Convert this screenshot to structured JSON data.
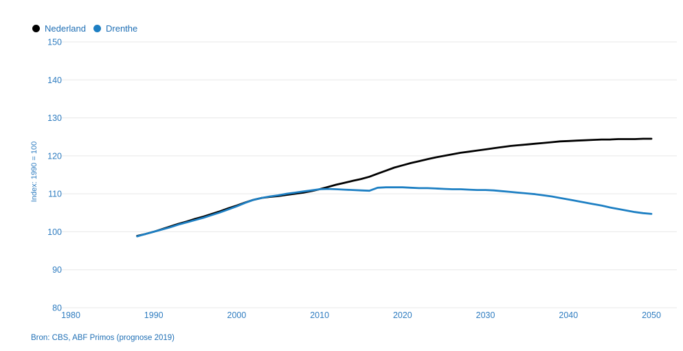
{
  "page": {
    "background": "#ffffff"
  },
  "legend": {
    "items": [
      {
        "label": "Nederland",
        "color": "#000000"
      },
      {
        "label": "Drenthe",
        "color": "#1d7fc3"
      }
    ]
  },
  "source_note": "Bron: CBS, ABF Primos (prognose 2019)",
  "colors": {
    "gridline": "#e7e7e7",
    "tick_text": "#2e7cc0",
    "label_text": "#1f6fb5",
    "nederland_line": "#000000",
    "drenthe_line": "#1d7fc3"
  },
  "chart_data": {
    "type": "line",
    "title": "",
    "xlabel": "",
    "ylabel": "Index: 1990 = 100",
    "xlim": [
      1980,
      2050
    ],
    "ylim": [
      80,
      150
    ],
    "xticks": [
      1980,
      1990,
      2000,
      2010,
      2020,
      2030,
      2040,
      2050
    ],
    "yticks": [
      80,
      90,
      100,
      110,
      120,
      130,
      140,
      150
    ],
    "grid": "horizontal",
    "legend_position": "top-left",
    "source": "Bron: CBS, ABF Primos (prognose 2019)",
    "series": [
      {
        "name": "Nederland",
        "color": "#000000",
        "points": [
          [
            1988,
            98.9
          ],
          [
            1989,
            99.4
          ],
          [
            1990,
            100.0
          ],
          [
            1991,
            100.7
          ],
          [
            1992,
            101.4
          ],
          [
            1993,
            102.1
          ],
          [
            1994,
            102.7
          ],
          [
            1995,
            103.4
          ],
          [
            1996,
            104.0
          ],
          [
            1997,
            104.7
          ],
          [
            1998,
            105.4
          ],
          [
            1999,
            106.2
          ],
          [
            2000,
            106.9
          ],
          [
            2001,
            107.7
          ],
          [
            2002,
            108.4
          ],
          [
            2003,
            108.9
          ],
          [
            2004,
            109.2
          ],
          [
            2005,
            109.4
          ],
          [
            2006,
            109.7
          ],
          [
            2007,
            110.0
          ],
          [
            2008,
            110.3
          ],
          [
            2009,
            110.7
          ],
          [
            2010,
            111.2
          ],
          [
            2011,
            111.8
          ],
          [
            2012,
            112.4
          ],
          [
            2013,
            112.9
          ],
          [
            2014,
            113.4
          ],
          [
            2015,
            113.9
          ],
          [
            2016,
            114.5
          ],
          [
            2017,
            115.3
          ],
          [
            2018,
            116.1
          ],
          [
            2019,
            116.9
          ],
          [
            2020,
            117.5
          ],
          [
            2021,
            118.1
          ],
          [
            2022,
            118.6
          ],
          [
            2023,
            119.1
          ],
          [
            2024,
            119.6
          ],
          [
            2025,
            120.0
          ],
          [
            2026,
            120.4
          ],
          [
            2027,
            120.8
          ],
          [
            2028,
            121.1
          ],
          [
            2029,
            121.4
          ],
          [
            2030,
            121.7
          ],
          [
            2031,
            122.0
          ],
          [
            2032,
            122.3
          ],
          [
            2033,
            122.6
          ],
          [
            2034,
            122.8
          ],
          [
            2035,
            123.0
          ],
          [
            2036,
            123.2
          ],
          [
            2037,
            123.4
          ],
          [
            2038,
            123.6
          ],
          [
            2039,
            123.8
          ],
          [
            2040,
            123.9
          ],
          [
            2041,
            124.0
          ],
          [
            2042,
            124.1
          ],
          [
            2043,
            124.2
          ],
          [
            2044,
            124.3
          ],
          [
            2045,
            124.3
          ],
          [
            2046,
            124.4
          ],
          [
            2047,
            124.4
          ],
          [
            2048,
            124.4
          ],
          [
            2049,
            124.5
          ],
          [
            2050,
            124.5
          ]
        ]
      },
      {
        "name": "Drenthe",
        "color": "#1d7fc3",
        "points": [
          [
            1988,
            98.8
          ],
          [
            1989,
            99.4
          ],
          [
            1990,
            100.0
          ],
          [
            1991,
            100.6
          ],
          [
            1992,
            101.2
          ],
          [
            1993,
            101.9
          ],
          [
            1994,
            102.5
          ],
          [
            1995,
            103.1
          ],
          [
            1996,
            103.7
          ],
          [
            1997,
            104.4
          ],
          [
            1998,
            105.1
          ],
          [
            1999,
            105.9
          ],
          [
            2000,
            106.7
          ],
          [
            2001,
            107.6
          ],
          [
            2002,
            108.4
          ],
          [
            2003,
            108.9
          ],
          [
            2004,
            109.3
          ],
          [
            2005,
            109.6
          ],
          [
            2006,
            110.0
          ],
          [
            2007,
            110.3
          ],
          [
            2008,
            110.6
          ],
          [
            2009,
            110.9
          ],
          [
            2010,
            111.2
          ],
          [
            2011,
            111.3
          ],
          [
            2012,
            111.2
          ],
          [
            2013,
            111.1
          ],
          [
            2014,
            111.0
          ],
          [
            2015,
            110.9
          ],
          [
            2016,
            110.8
          ],
          [
            2017,
            111.6
          ],
          [
            2018,
            111.7
          ],
          [
            2019,
            111.7
          ],
          [
            2020,
            111.7
          ],
          [
            2021,
            111.6
          ],
          [
            2022,
            111.5
          ],
          [
            2023,
            111.5
          ],
          [
            2024,
            111.4
          ],
          [
            2025,
            111.3
          ],
          [
            2026,
            111.2
          ],
          [
            2027,
            111.2
          ],
          [
            2028,
            111.1
          ],
          [
            2029,
            111.0
          ],
          [
            2030,
            111.0
          ],
          [
            2031,
            110.9
          ],
          [
            2032,
            110.7
          ],
          [
            2033,
            110.5
          ],
          [
            2034,
            110.3
          ],
          [
            2035,
            110.1
          ],
          [
            2036,
            109.9
          ],
          [
            2037,
            109.6
          ],
          [
            2038,
            109.3
          ],
          [
            2039,
            108.9
          ],
          [
            2040,
            108.5
          ],
          [
            2041,
            108.1
          ],
          [
            2042,
            107.7
          ],
          [
            2043,
            107.3
          ],
          [
            2044,
            106.9
          ],
          [
            2045,
            106.4
          ],
          [
            2046,
            106.0
          ],
          [
            2047,
            105.6
          ],
          [
            2048,
            105.2
          ],
          [
            2049,
            104.9
          ],
          [
            2050,
            104.7
          ]
        ]
      }
    ]
  }
}
